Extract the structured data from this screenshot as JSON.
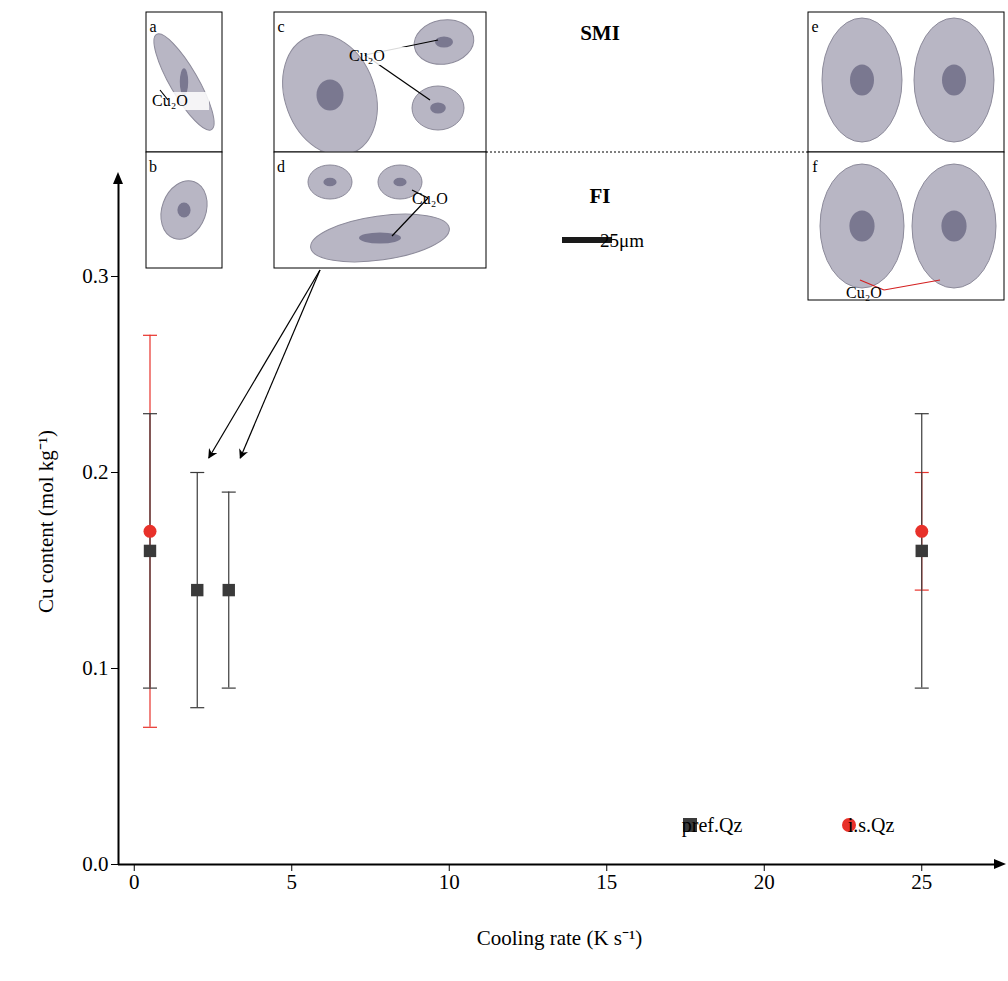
{
  "chart_data": {
    "type": "scatter",
    "x_label": "Cooling rate (K s⁻¹)",
    "y_label": "Cu content (mol kg⁻¹)",
    "xlim": [
      -0.5,
      27.5
    ],
    "xticks": [
      0,
      5,
      10,
      15,
      20,
      25
    ],
    "ylim": [
      0,
      0.35
    ],
    "yticks": [
      {
        "value": 0,
        "label": "0.0"
      },
      0.1,
      0.2,
      0.3
    ],
    "grid": false,
    "legend": "lower right",
    "series": [
      {
        "name": "pref.Qz",
        "color": "#3a3a3a",
        "marker": "square",
        "x": [
          0.5,
          2,
          3,
          25
        ],
        "values": [
          0.16,
          0.14,
          0.14,
          0.16
        ],
        "error_low": [
          0.09,
          0.08,
          0.09,
          0.09
        ],
        "error_high": [
          0.23,
          0.2,
          0.19,
          0.23
        ]
      },
      {
        "name": "i.s.Qz",
        "color": "#e8312a",
        "marker": "circle",
        "x": [
          0.5,
          25
        ],
        "values": [
          0.17,
          0.17
        ],
        "error_low": [
          0.07,
          0.14
        ],
        "error_high": [
          0.27,
          0.2
        ]
      }
    ],
    "insets": {
      "labels": [
        "a",
        "b",
        "c",
        "d",
        "e",
        "f"
      ],
      "mineral": "Cu₂O",
      "mineral_in": [
        "a",
        "c",
        "d",
        "f"
      ],
      "top_row": "SMI",
      "bottom_row": "FI",
      "scale_bar": "25μm",
      "arrows_to_x": [
        2,
        3
      ]
    }
  }
}
